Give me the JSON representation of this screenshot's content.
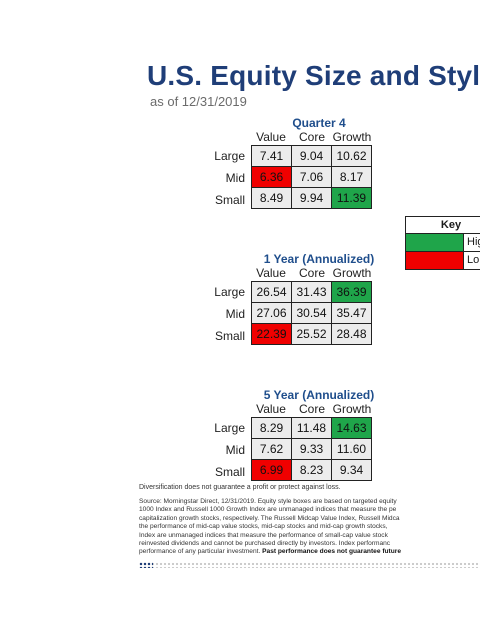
{
  "title": "U.S. Equity Size and Style",
  "subtitle": "as of 12/31/2019",
  "column_headers": [
    "Value",
    "Core",
    "Growth"
  ],
  "row_headers": [
    "Large",
    "Mid",
    "Small"
  ],
  "sections": [
    {
      "title": "Quarter 4",
      "rows": [
        {
          "label": "Large",
          "cells": [
            {
              "v": "7.41"
            },
            {
              "v": "9.04"
            },
            {
              "v": "10.62"
            }
          ]
        },
        {
          "label": "Mid",
          "cells": [
            {
              "v": "6.36",
              "hl": "low"
            },
            {
              "v": "7.06"
            },
            {
              "v": "8.17"
            }
          ]
        },
        {
          "label": "Small",
          "cells": [
            {
              "v": "8.49"
            },
            {
              "v": "9.94"
            },
            {
              "v": "11.39",
              "hl": "high"
            }
          ]
        }
      ]
    },
    {
      "title": "1 Year (Annualized)",
      "rows": [
        {
          "label": "Large",
          "cells": [
            {
              "v": "26.54"
            },
            {
              "v": "31.43"
            },
            {
              "v": "36.39",
              "hl": "high"
            }
          ]
        },
        {
          "label": "Mid",
          "cells": [
            {
              "v": "27.06"
            },
            {
              "v": "30.54"
            },
            {
              "v": "35.47"
            }
          ]
        },
        {
          "label": "Small",
          "cells": [
            {
              "v": "22.39",
              "hl": "low"
            },
            {
              "v": "25.52"
            },
            {
              "v": "28.48"
            }
          ]
        }
      ]
    },
    {
      "title": "5 Year (Annualized)",
      "rows": [
        {
          "label": "Large",
          "cells": [
            {
              "v": "8.29"
            },
            {
              "v": "11.48"
            },
            {
              "v": "14.63",
              "hl": "high"
            }
          ]
        },
        {
          "label": "Mid",
          "cells": [
            {
              "v": "7.62"
            },
            {
              "v": "9.33"
            },
            {
              "v": "11.60"
            }
          ]
        },
        {
          "label": "Small",
          "cells": [
            {
              "v": "6.99",
              "hl": "low"
            },
            {
              "v": "8.23"
            },
            {
              "v": "9.34"
            }
          ]
        }
      ]
    }
  ],
  "key": {
    "title": "Key",
    "items": [
      {
        "label": "Hig",
        "color": "#1fa54a"
      },
      {
        "label": "Lo",
        "color": "#f00000"
      }
    ]
  },
  "colors": {
    "title": "#1f3e78",
    "high": "#1fa54a",
    "low": "#f00000",
    "cell": "#ececec"
  },
  "footer": {
    "note": "Diversification does not guarantee a profit or protect against loss.",
    "source_lines": [
      "Source: Morningstar Direct, 12/31/2019. Equity style boxes are based on targeted equity",
      "1000 Index and Russell 1000 Growth Index are unmanaged indices that measure the pe",
      "capitalization growth stocks, respectively. The Russell Midcap Value Index, Russell Midca",
      "the performance of mid-cap value stocks, mid-cap stocks and mid-cap growth stocks,",
      "Index are unmanaged indices that measure the performance of small-cap value stock",
      "reinvested dividends and cannot be purchased directly by investors. Index performanc"
    ],
    "source_last_plain": "performance of any particular investment. ",
    "source_last_bold": "Past performance does not guarantee future"
  }
}
